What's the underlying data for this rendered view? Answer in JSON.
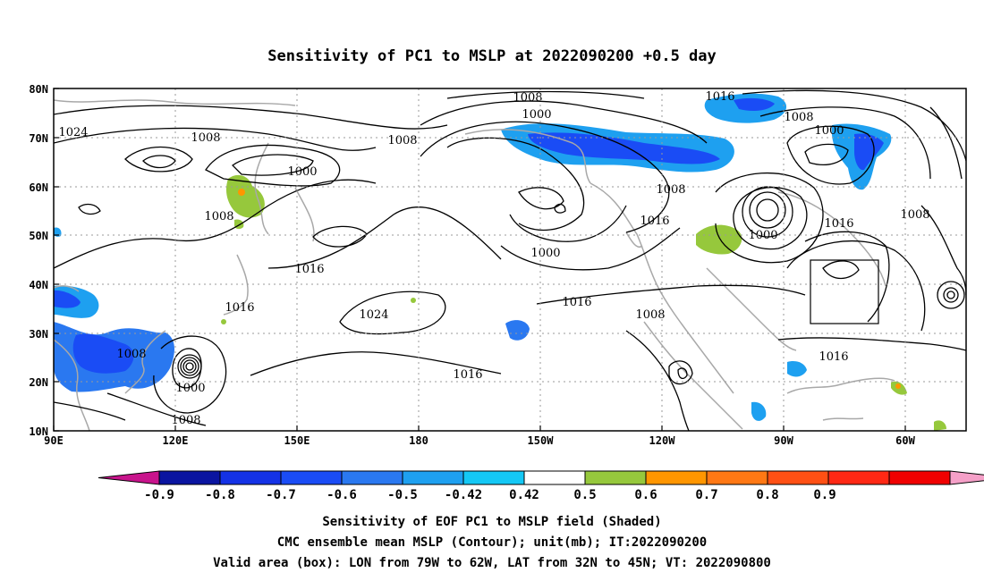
{
  "title": "Sensitivity of PC1 to MSLP at 2022090200 +0.5 day",
  "map": {
    "lon_ticks": [
      "90E",
      "120E",
      "150E",
      "180",
      "150W",
      "120W",
      "90W",
      "60W"
    ],
    "lat_ticks": [
      "80N",
      "70N",
      "60N",
      "50N",
      "40N",
      "30N",
      "20N",
      "10N"
    ],
    "contour_labels": [
      "1024",
      "1008",
      "1008",
      "1000",
      "1008",
      "1008",
      "1000",
      "1008",
      "1016",
      "1008",
      "1000",
      "1008",
      "1016",
      "1000",
      "1000",
      "1016",
      "1008",
      "1016",
      "1024",
      "1016",
      "1016",
      "1008",
      "1008",
      "1000",
      "1008",
      "1016",
      "1016"
    ],
    "valid_box": {
      "lon_from": "79W",
      "lon_to": "62W",
      "lat_from": "32N",
      "lat_to": "45N"
    }
  },
  "colorbar": {
    "labels": [
      "-0.9",
      "-0.8",
      "-0.7",
      "-0.6",
      "-0.5",
      "-0.42",
      "0.42",
      "0.5",
      "0.6",
      "0.7",
      "0.8",
      "0.9"
    ],
    "colors": [
      "#c8148c",
      "#0a14a0",
      "#1432e6",
      "#1a4cf5",
      "#2a78f0",
      "#1ea0f0",
      "#14c8f5",
      "#ffffff",
      "#96c83c",
      "#ff9600",
      "#ff7814",
      "#ff5014",
      "#ff2814",
      "#f00000",
      "#f5a0c8"
    ]
  },
  "caption": {
    "line1": "Sensitivity of EOF PC1 to MSLP field (Shaded)",
    "line2": "CMC ensemble mean MSLP (Contour); unit(mb); IT:2022090200",
    "line3": "Valid area (box): LON from 79W to 62W, LAT from 32N to 45N; VT: 2022090800"
  }
}
